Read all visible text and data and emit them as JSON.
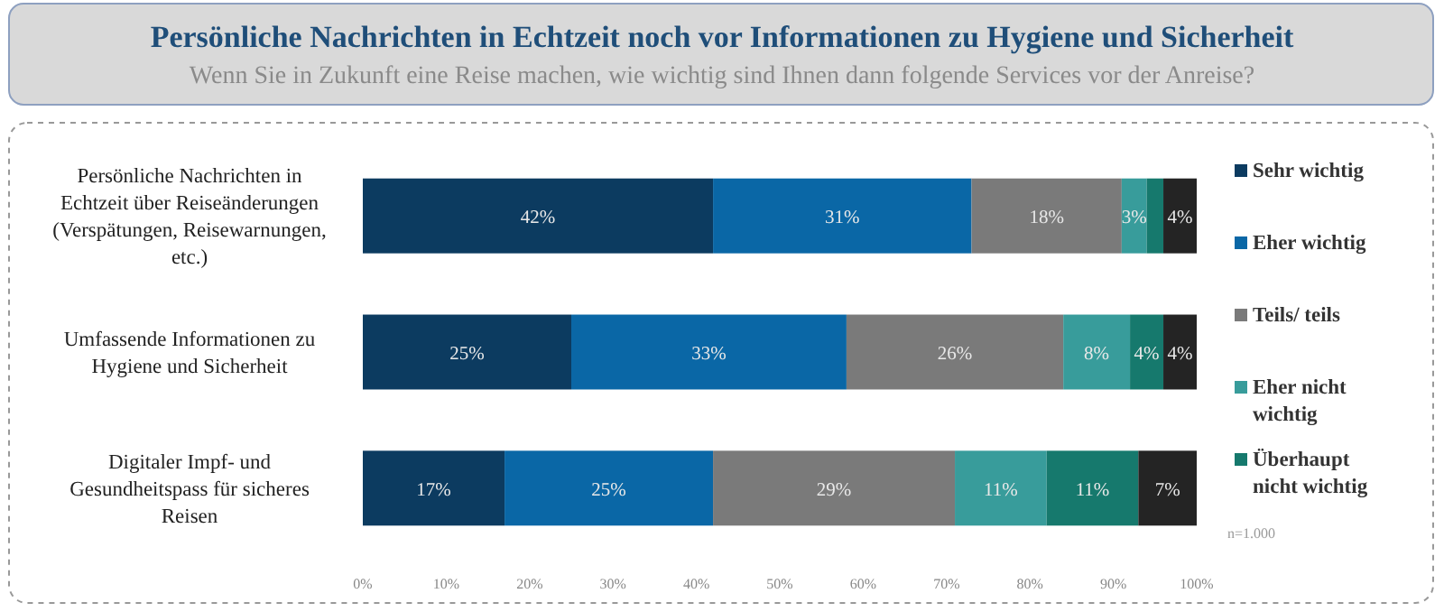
{
  "chart_data": {
    "type": "bar",
    "orientation": "horizontal",
    "stacked": true,
    "title": "Persönliche Nachrichten in Echtzeit noch vor Informationen zu Hygiene und Sicherheit",
    "subtitle": "Wenn Sie in Zukunft eine Reise machen, wie wichtig sind Ihnen dann folgende Services vor der Anreise?",
    "categories": [
      "Persönliche Nachrichten in Echtzeit über Reiseänderungen (Verspätungen, Reisewarnungen, etc.)",
      "Umfassende Informationen zu Hygiene und Sicherheit",
      "Digitaler Impf- und Gesundheitspass für sicheres Reisen"
    ],
    "series": [
      {
        "name": "Sehr wichtig",
        "color": "#0c3b60",
        "values": [
          42,
          25,
          17
        ],
        "value_labels": [
          "42%",
          "25%",
          "17%"
        ]
      },
      {
        "name": "Eher wichtig",
        "color": "#0a67a6",
        "values": [
          31,
          33,
          25
        ],
        "value_labels": [
          "31%",
          "33%",
          "25%"
        ]
      },
      {
        "name": "Teils/ teils",
        "color": "#7a7a7a",
        "values": [
          18,
          26,
          29
        ],
        "value_labels": [
          "18%",
          "26%",
          "29%"
        ]
      },
      {
        "name": "Eher nicht wichtig",
        "color": "#389c9b",
        "values": [
          3,
          8,
          11
        ],
        "value_labels": [
          "3%",
          "8%",
          "11%"
        ]
      },
      {
        "name": "Überhaupt nicht wichtig",
        "color": "#16796d",
        "values": [
          2,
          4,
          11
        ],
        "value_labels": [
          null,
          "4%",
          "11%"
        ]
      },
      {
        "color": "#242424",
        "values": [
          4,
          4,
          7
        ],
        "value_labels": [
          "4%",
          "4%",
          "7%"
        ]
      }
    ],
    "xlim": [
      0,
      100
    ],
    "xticks": [
      {
        "value": 0,
        "label": "0%"
      },
      {
        "value": 10,
        "label": "10%"
      },
      {
        "value": 20,
        "label": "20%"
      },
      {
        "value": 30,
        "label": "30%"
      },
      {
        "value": 40,
        "label": "40%"
      },
      {
        "value": 50,
        "label": "50%"
      },
      {
        "value": 60,
        "label": "60%"
      },
      {
        "value": 70,
        "label": "70%"
      },
      {
        "value": 80,
        "label": "80%"
      },
      {
        "value": 90,
        "label": "90%"
      },
      {
        "value": 100,
        "label": "100%"
      }
    ],
    "legend": "right",
    "annotations": [
      "n=1.000"
    ]
  }
}
